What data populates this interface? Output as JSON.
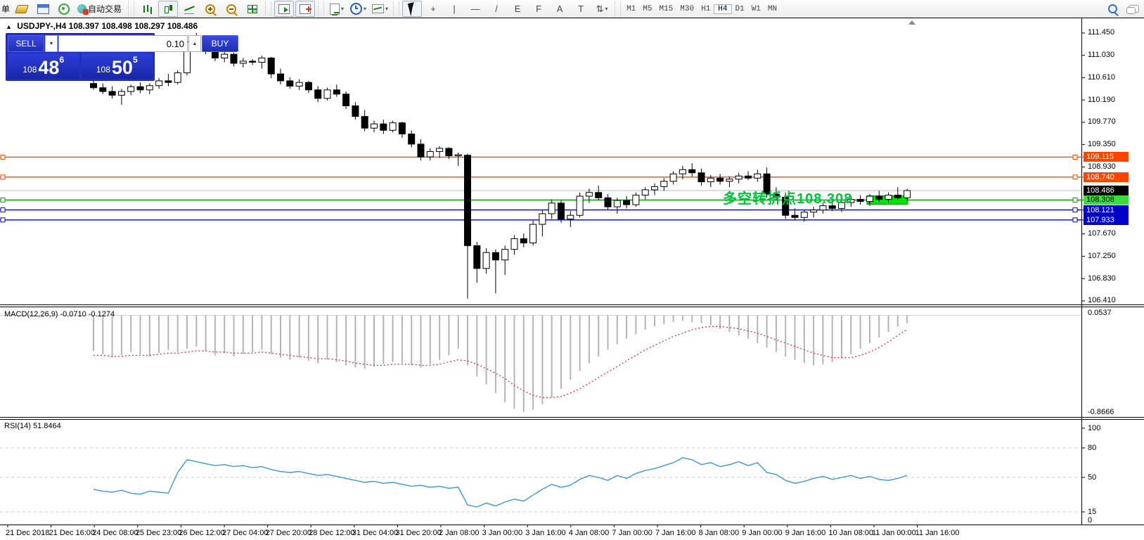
{
  "toolbar": {
    "new_order_label": "单",
    "auto_trading_label": "自动交易",
    "timeframes": [
      "M1",
      "M5",
      "M15",
      "M30",
      "H1",
      "H4",
      "D1",
      "W1",
      "MN"
    ],
    "active_timeframe": "H4",
    "tools": {
      "channel_letter": "E",
      "fibo_letter": "F",
      "text_tool": "A",
      "label_tool": "T"
    }
  },
  "icons": {
    "collapse": "▲",
    "caret_down": "▾",
    "spinner_up": "▲",
    "spinner_down": "▼",
    "crosshair": "+",
    "vline": "|",
    "hline": "—",
    "trend": "/"
  },
  "chart": {
    "title": "USDJPY-,H4",
    "ohlc": "108.397 108.498 108.297 108.486"
  },
  "trade_panel": {
    "sell_label": "SELL",
    "buy_label": "BUY",
    "volume": "0.10",
    "sell_price_prefix": "108",
    "sell_price_big": "48",
    "sell_price_sup": "6",
    "buy_price_prefix": "108",
    "buy_price_big": "50",
    "buy_price_sup": "5"
  },
  "annotation": {
    "text": "多空转折点108.308",
    "color": "#00c23c"
  },
  "chart_data": [
    {
      "type": "candlestick",
      "symbol": "USDJPY",
      "timeframe": "H4",
      "ylim": [
        106.36,
        111.74
      ],
      "y_ticks": [
        "111.450",
        "111.030",
        "110.610",
        "110.190",
        "109.770",
        "109.350",
        "108.930",
        "107.670",
        "107.250",
        "106.830",
        "106.410"
      ],
      "current_price": {
        "label": "108.486",
        "value": 108.486,
        "line_color": "#b8b8b8",
        "label_bg": "#000000",
        "label_fg": "#ffffff"
      },
      "hlines": [
        {
          "value": 109.115,
          "label": "109.115",
          "color": "#ff4400",
          "label_bg": "#ff4400",
          "label_fg": "#ffffff"
        },
        {
          "value": 108.74,
          "label": "108.740",
          "color": "#ff4400",
          "label_bg": "#ff4400",
          "label_fg": "#ffffff"
        },
        {
          "value": 108.308,
          "label": "108.308",
          "color": "#009900",
          "label_bg": "#3ddc3d",
          "label_fg": "#000000"
        },
        {
          "value": 108.121,
          "label": "108.121",
          "color": "#0000c8",
          "label_bg": "#0000c8",
          "label_fg": "#ffffff"
        },
        {
          "value": 107.933,
          "label": "107.933",
          "color": "#0000c8",
          "label_bg": "#0000c8",
          "label_fg": "#ffffff"
        }
      ],
      "highlight_box": {
        "value": 108.308,
        "color": "#00e400",
        "border": "#009900"
      },
      "candles": [
        [
          110.5,
          110.62,
          110.38,
          110.42
        ],
        [
          110.42,
          110.5,
          110.3,
          110.35
        ],
        [
          110.35,
          110.45,
          110.22,
          110.28
        ],
        [
          110.28,
          110.4,
          110.1,
          110.35
        ],
        [
          110.35,
          110.48,
          110.28,
          110.44
        ],
        [
          110.44,
          110.52,
          110.32,
          110.38
        ],
        [
          110.38,
          110.5,
          110.3,
          110.46
        ],
        [
          110.46,
          110.6,
          110.4,
          110.55
        ],
        [
          110.55,
          110.68,
          110.45,
          110.52
        ],
        [
          110.52,
          110.75,
          110.48,
          110.7
        ],
        [
          110.7,
          111.35,
          110.65,
          111.28
        ],
        [
          111.28,
          111.45,
          111.15,
          111.35
        ],
        [
          111.35,
          111.4,
          111.05,
          111.12
        ],
        [
          111.12,
          111.22,
          110.92,
          110.98
        ],
        [
          110.98,
          111.1,
          110.9,
          111.05
        ],
        [
          111.05,
          111.08,
          110.82,
          110.88
        ],
        [
          110.88,
          110.98,
          110.8,
          110.92
        ],
        [
          110.92,
          110.96,
          110.85,
          110.9
        ],
        [
          110.9,
          111.02,
          110.78,
          110.98
        ],
        [
          110.98,
          111.0,
          110.6,
          110.68
        ],
        [
          110.68,
          110.78,
          110.48,
          110.55
        ],
        [
          110.55,
          110.62,
          110.4,
          110.45
        ],
        [
          110.45,
          110.58,
          110.38,
          110.52
        ],
        [
          110.52,
          110.55,
          110.32,
          110.38
        ],
        [
          110.38,
          110.45,
          110.15,
          110.22
        ],
        [
          110.22,
          110.42,
          110.18,
          110.38
        ],
        [
          110.38,
          110.48,
          110.25,
          110.3
        ],
        [
          110.3,
          110.35,
          110.02,
          110.08
        ],
        [
          110.08,
          110.15,
          109.82,
          109.88
        ],
        [
          109.88,
          110.0,
          109.6,
          109.66
        ],
        [
          109.66,
          109.8,
          109.58,
          109.74
        ],
        [
          109.74,
          109.82,
          109.55,
          109.62
        ],
        [
          109.62,
          109.8,
          109.58,
          109.76
        ],
        [
          109.76,
          109.78,
          109.48,
          109.55
        ],
        [
          109.55,
          109.62,
          109.3,
          109.36
        ],
        [
          109.36,
          109.45,
          109.05,
          109.12
        ],
        [
          109.12,
          109.28,
          109.05,
          109.22
        ],
        [
          109.22,
          109.32,
          109.1,
          109.28
        ],
        [
          109.28,
          109.3,
          109.08,
          109.14
        ],
        [
          109.14,
          109.2,
          108.95,
          109.16
        ],
        [
          109.15,
          109.18,
          106.45,
          107.45
        ],
        [
          107.45,
          107.52,
          106.75,
          107.02
        ],
        [
          107.02,
          107.4,
          106.92,
          107.32
        ],
        [
          107.32,
          107.38,
          106.55,
          107.18
        ],
        [
          107.18,
          107.45,
          106.9,
          107.38
        ],
        [
          107.38,
          107.65,
          107.28,
          107.58
        ],
        [
          107.58,
          107.68,
          107.42,
          107.5
        ],
        [
          107.5,
          107.92,
          107.45,
          107.85
        ],
        [
          107.85,
          108.12,
          107.62,
          108.05
        ],
        [
          108.05,
          108.32,
          107.95,
          108.25
        ],
        [
          108.25,
          108.3,
          107.88,
          107.95
        ],
        [
          107.95,
          108.1,
          107.8,
          108.02
        ],
        [
          108.02,
          108.45,
          107.98,
          108.38
        ],
        [
          108.38,
          108.52,
          108.25,
          108.45
        ],
        [
          108.45,
          108.58,
          108.3,
          108.35
        ],
        [
          108.35,
          108.42,
          108.12,
          108.18
        ],
        [
          108.18,
          108.35,
          108.05,
          108.3
        ],
        [
          108.3,
          108.38,
          108.15,
          108.22
        ],
        [
          108.22,
          108.45,
          108.18,
          108.4
        ],
        [
          108.4,
          108.55,
          108.32,
          108.5
        ],
        [
          108.5,
          108.62,
          108.4,
          108.56
        ],
        [
          108.56,
          108.72,
          108.48,
          108.66
        ],
        [
          108.66,
          108.85,
          108.6,
          108.8
        ],
        [
          108.8,
          108.95,
          108.7,
          108.88
        ],
        [
          108.88,
          109.0,
          108.75,
          108.82
        ],
        [
          108.82,
          108.9,
          108.58,
          108.65
        ],
        [
          108.65,
          108.78,
          108.55,
          108.72
        ],
        [
          108.72,
          108.8,
          108.6,
          108.66
        ],
        [
          108.66,
          108.75,
          108.55,
          108.7
        ],
        [
          108.7,
          108.82,
          108.62,
          108.76
        ],
        [
          108.76,
          108.85,
          108.68,
          108.72
        ],
        [
          108.72,
          108.88,
          108.65,
          108.8
        ],
        [
          108.8,
          108.92,
          108.35,
          108.42
        ],
        [
          108.42,
          108.55,
          108.3,
          108.36
        ],
        [
          108.36,
          108.45,
          107.95,
          108.02
        ],
        [
          108.02,
          108.15,
          107.92,
          107.98
        ],
        [
          107.98,
          108.12,
          107.9,
          108.08
        ],
        [
          108.08,
          108.18,
          107.98,
          108.12
        ],
        [
          108.12,
          108.25,
          108.05,
          108.2
        ],
        [
          108.2,
          108.32,
          108.1,
          108.15
        ],
        [
          108.15,
          108.3,
          108.08,
          108.26
        ],
        [
          108.26,
          108.38,
          108.18,
          108.32
        ],
        [
          108.32,
          108.4,
          108.22,
          108.28
        ],
        [
          108.28,
          108.42,
          108.2,
          108.38
        ],
        [
          108.38,
          108.48,
          108.28,
          108.32
        ],
        [
          108.32,
          108.45,
          108.25,
          108.4
        ],
        [
          108.4,
          108.55,
          108.32,
          108.35
        ],
        [
          108.35,
          108.52,
          108.3,
          108.486
        ]
      ]
    },
    {
      "type": "bar",
      "name": "MACD",
      "label": "MACD(12,26,9) -0.0710 -0.1274",
      "axis_labels": [
        "0.0537",
        "-0.8666"
      ],
      "ylim": [
        -0.8666,
        0.0537
      ],
      "histogram_color": "#b4b4b4",
      "signal_color": "#e03030",
      "histogram": [
        -0.32,
        -0.35,
        -0.38,
        -0.36,
        -0.33,
        -0.35,
        -0.37,
        -0.34,
        -0.31,
        -0.33,
        -0.3,
        -0.28,
        -0.32,
        -0.36,
        -0.34,
        -0.37,
        -0.35,
        -0.33,
        -0.31,
        -0.35,
        -0.38,
        -0.4,
        -0.38,
        -0.41,
        -0.43,
        -0.4,
        -0.42,
        -0.45,
        -0.47,
        -0.48,
        -0.46,
        -0.44,
        -0.42,
        -0.43,
        -0.45,
        -0.47,
        -0.44,
        -0.4,
        -0.36,
        -0.3,
        -0.45,
        -0.55,
        -0.62,
        -0.7,
        -0.78,
        -0.84,
        -0.87,
        -0.85,
        -0.8,
        -0.74,
        -0.66,
        -0.58,
        -0.5,
        -0.43,
        -0.37,
        -0.31,
        -0.26,
        -0.21,
        -0.17,
        -0.13,
        -0.1,
        -0.08,
        -0.06,
        -0.05,
        -0.06,
        -0.07,
        -0.09,
        -0.12,
        -0.15,
        -0.18,
        -0.21,
        -0.25,
        -0.29,
        -0.33,
        -0.37,
        -0.4,
        -0.43,
        -0.45,
        -0.44,
        -0.42,
        -0.39,
        -0.35,
        -0.3,
        -0.25,
        -0.2,
        -0.15,
        -0.1,
        -0.071
      ],
      "signal": [
        -0.36,
        -0.36,
        -0.37,
        -0.37,
        -0.36,
        -0.36,
        -0.36,
        -0.35,
        -0.34,
        -0.34,
        -0.33,
        -0.32,
        -0.32,
        -0.33,
        -0.33,
        -0.34,
        -0.34,
        -0.34,
        -0.33,
        -0.34,
        -0.35,
        -0.36,
        -0.37,
        -0.38,
        -0.39,
        -0.39,
        -0.4,
        -0.41,
        -0.43,
        -0.44,
        -0.45,
        -0.45,
        -0.44,
        -0.44,
        -0.44,
        -0.45,
        -0.45,
        -0.44,
        -0.42,
        -0.4,
        -0.41,
        -0.44,
        -0.48,
        -0.52,
        -0.57,
        -0.63,
        -0.68,
        -0.72,
        -0.74,
        -0.74,
        -0.73,
        -0.7,
        -0.66,
        -0.61,
        -0.56,
        -0.51,
        -0.46,
        -0.41,
        -0.36,
        -0.31,
        -0.27,
        -0.23,
        -0.19,
        -0.16,
        -0.13,
        -0.11,
        -0.1,
        -0.1,
        -0.11,
        -0.12,
        -0.14,
        -0.16,
        -0.19,
        -0.22,
        -0.25,
        -0.28,
        -0.31,
        -0.34,
        -0.36,
        -0.38,
        -0.38,
        -0.38,
        -0.36,
        -0.33,
        -0.29,
        -0.24,
        -0.18,
        -0.1274
      ]
    },
    {
      "type": "line",
      "name": "RSI",
      "label": "RSI(14) 51.8464",
      "axis_labels": [
        "100",
        "80",
        "50",
        "15",
        "0"
      ],
      "levels": [
        80,
        50,
        15
      ],
      "line_color": "#3c96dc",
      "ylim": [
        0,
        100
      ],
      "values": [
        38,
        36,
        35,
        37,
        34,
        33,
        36,
        35,
        34,
        55,
        68,
        66,
        64,
        62,
        63,
        61,
        62,
        60,
        61,
        58,
        56,
        55,
        56,
        54,
        52,
        53,
        51,
        49,
        47,
        45,
        46,
        44,
        45,
        43,
        41,
        42,
        40,
        41,
        39,
        40,
        22,
        20,
        24,
        21,
        25,
        28,
        26,
        32,
        38,
        43,
        40,
        42,
        48,
        52,
        50,
        47,
        52,
        49,
        54,
        57,
        59,
        62,
        65,
        70,
        68,
        63,
        65,
        61,
        63,
        66,
        62,
        65,
        55,
        53,
        47,
        44,
        46,
        49,
        51,
        48,
        50,
        52,
        49,
        51,
        48,
        47,
        49,
        52
      ]
    },
    {
      "type": "time_axis",
      "labels": [
        "21 Dec 2018",
        "21 Dec 16:00",
        "24 Dec 08:00",
        "25 Dec 23:00",
        "26 Dec 12:00",
        "27 Dec 04:00",
        "27 Dec 20:00",
        "28 Dec 12:00",
        "31 Dec 04:00",
        "31 Dec 20:00",
        "2 Jan 08:00",
        "3 Jan 00:00",
        "3 Jan 16:00",
        "4 Jan 08:00",
        "7 Jan 00:00",
        "7 Jan 16:00",
        "8 Jan 08:00",
        "9 Jan 00:00",
        "9 Jan 16:00",
        "10 Jan 08:00",
        "11 Jan 00:00",
        "11 Jan 16:00"
      ]
    }
  ]
}
